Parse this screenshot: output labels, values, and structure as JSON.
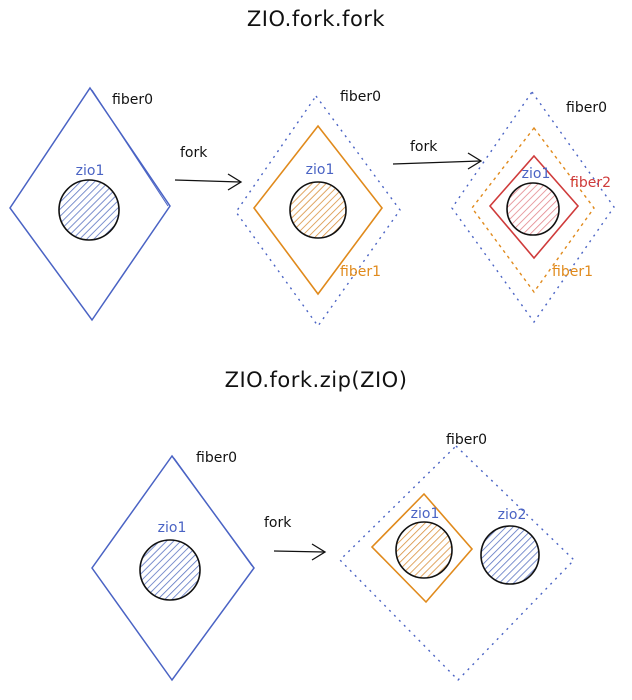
{
  "diagrams": [
    {
      "title": "ZIO.fork.fork",
      "stages": [
        {
          "outer_label": "fiber0",
          "effect_label": "zio1"
        },
        {
          "outer_label": "fiber0",
          "inner_label": "fiber1",
          "effect_label": "zio1"
        },
        {
          "outer_label": "fiber0",
          "middle_label": "fiber1",
          "inner_label": "fiber2",
          "effect_label": "zio1"
        }
      ],
      "arrows": [
        "fork",
        "fork"
      ]
    },
    {
      "title": "ZIO.fork.zip(ZIO)",
      "stages": [
        {
          "outer_label": "fiber0",
          "effect_label": "zio1"
        },
        {
          "outer_label": "fiber0",
          "effect_label": "zio1",
          "second_effect_label": "zio2"
        }
      ],
      "arrows": [
        "fork"
      ]
    }
  ],
  "colors": {
    "fiber0": "#4a63c4",
    "fiber1": "#e08a1c",
    "fiber2": "#cf3b3b",
    "zio1_fill": "#6f86c9",
    "zio1_forked_fill": "#d99a4e",
    "zio1_fiber2_fill": "#e58d92",
    "zio2_fill": "#6f86c9",
    "ink": "#111111"
  }
}
